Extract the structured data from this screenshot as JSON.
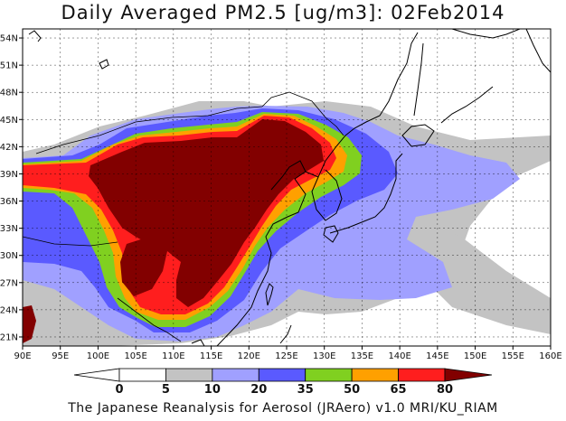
{
  "title": "Daily Averaged PM2.5 [ug/m3]: 02Feb2014",
  "footer": "The Japanese Reanalysis for Aerosol (JRAero) v1.0 MRI/KU_RIAM",
  "map": {
    "lon_range": [
      90,
      160
    ],
    "lat_range": [
      20,
      55
    ],
    "lon_ticks": [
      "90E",
      "95E",
      "100E",
      "105E",
      "110E",
      "115E",
      "120E",
      "125E",
      "130E",
      "135E",
      "140E",
      "145E",
      "150E",
      "155E",
      "160E"
    ],
    "lat_ticks": [
      "21N",
      "24N",
      "27N",
      "30N",
      "33N",
      "36N",
      "39N",
      "42N",
      "45N",
      "48N",
      "51N",
      "54N"
    ],
    "background_color": "#ffffff",
    "grid": "dashed"
  },
  "colorbar": {
    "labels": [
      "0",
      "5",
      "10",
      "20",
      "35",
      "50",
      "65",
      "80"
    ],
    "colors": [
      "#ffffff",
      "#c3c3c3",
      "#a0a0ff",
      "#5a5aff",
      "#80d020",
      "#ffa000",
      "#ff1e1e",
      "#820000"
    ],
    "unit": "ug/m3"
  }
}
